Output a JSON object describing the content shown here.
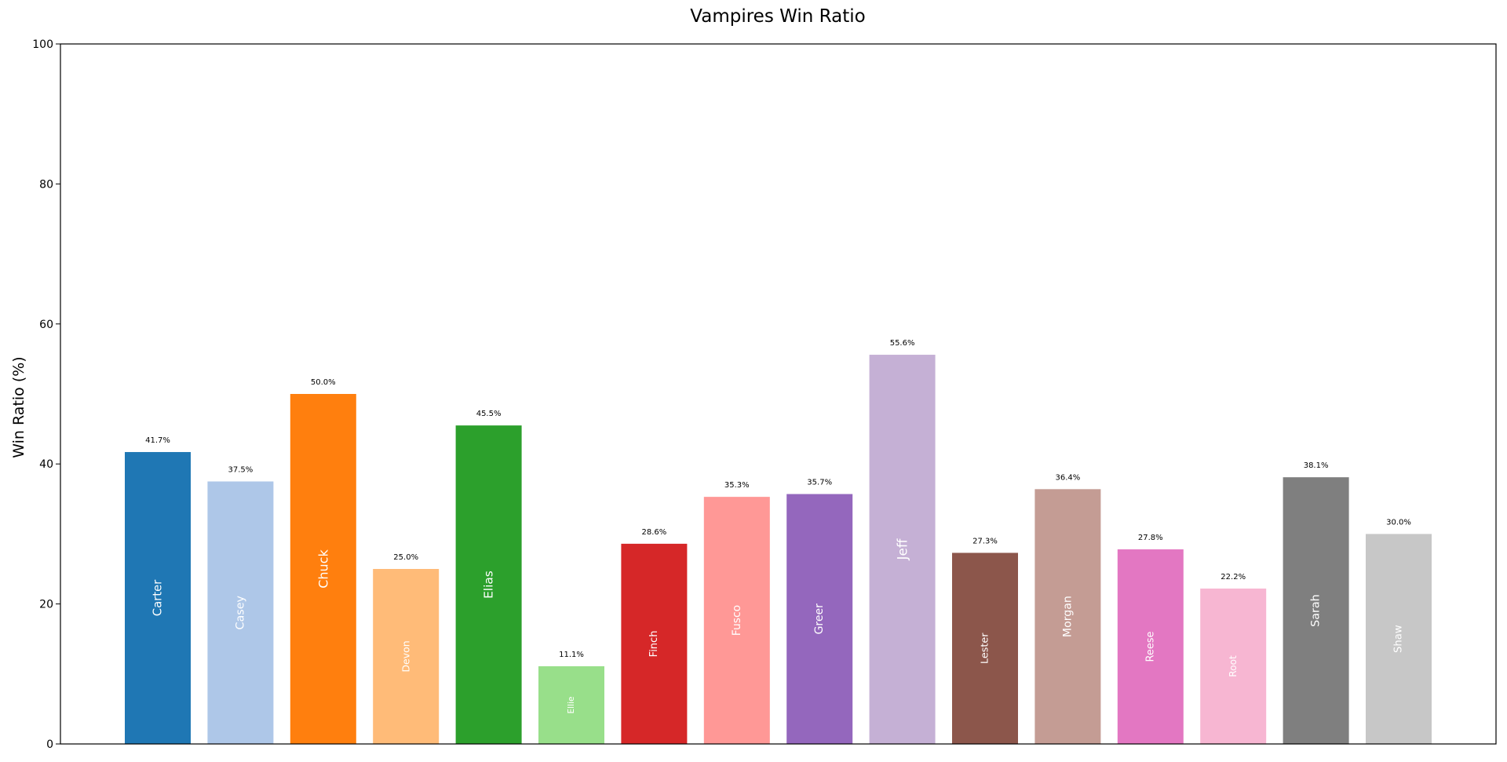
{
  "chart_data": {
    "type": "bar",
    "title": "Vampires Win Ratio",
    "xlabel": "",
    "ylabel": "Win Ratio (%)",
    "ylim": [
      0,
      100
    ],
    "yticks": [
      0,
      20,
      40,
      60,
      80,
      100
    ],
    "grid": false,
    "categories": [
      "Carter",
      "Casey",
      "Chuck",
      "Devon",
      "Elias",
      "Ellie",
      "Finch",
      "Fusco",
      "Greer",
      "Jeff",
      "Lester",
      "Morgan",
      "Reese",
      "Root",
      "Sarah",
      "Shaw"
    ],
    "values": [
      41.7,
      37.5,
      50.0,
      25.0,
      45.5,
      11.1,
      28.6,
      35.3,
      35.7,
      55.6,
      27.3,
      36.4,
      27.8,
      22.2,
      38.1,
      30.0
    ],
    "value_labels": [
      "41.7%",
      "37.5%",
      "50.0%",
      "25.0%",
      "45.5%",
      "11.1%",
      "28.6%",
      "35.3%",
      "35.7%",
      "55.6%",
      "27.3%",
      "36.4%",
      "27.8%",
      "22.2%",
      "38.1%",
      "30.0%"
    ],
    "colors": [
      "#1f77b4",
      "#aec7e8",
      "#ff7f0e",
      "#ffbb78",
      "#2ca02c",
      "#98df8a",
      "#d62728",
      "#ff9896",
      "#9467bd",
      "#c5b0d5",
      "#8c564b",
      "#c49c94",
      "#e377c2",
      "#f7b6d2",
      "#7f7f7f",
      "#c7c7c7"
    ]
  }
}
